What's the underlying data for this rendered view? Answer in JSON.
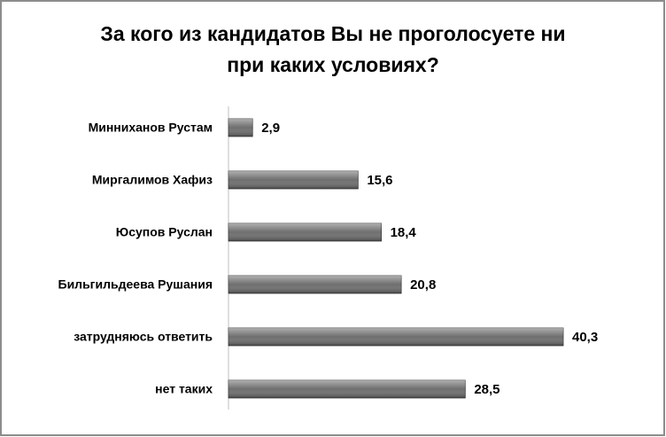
{
  "chart_data": {
    "type": "bar",
    "orientation": "horizontal",
    "title_lines": [
      "За кого из кандидатов Вы не проголосуете ни",
      "при каких условиях?"
    ],
    "categories": [
      "Минниханов Рустам",
      "Миргалимов Хафиз",
      "Юсупов Руслан",
      "Бильгильдеева Рушания",
      "затрудняюсь ответить",
      "нет таких"
    ],
    "values": [
      2.9,
      15.6,
      18.4,
      20.8,
      40.3,
      28.5
    ],
    "value_labels": [
      "2,9",
      "15,6",
      "18,4",
      "20,8",
      "40,3",
      "28,5"
    ],
    "color": "#6e6e6e"
  }
}
